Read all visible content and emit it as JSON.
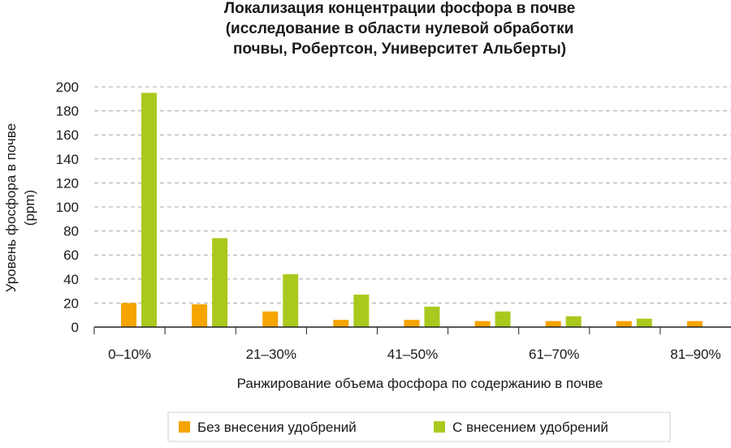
{
  "chart_data": {
    "type": "bar",
    "title_lines": [
      "Локализация концентрации фосфора в почве",
      "(исследование в области нулевой обработки",
      "почвы, Робертсон, Университет Альберты)"
    ],
    "xlabel": "Ранжирование объема фосфора по содержанию в почве",
    "ylabel_lines": [
      "Уровень фосфора в почве",
      "(ppm)"
    ],
    "ylim": [
      0,
      200
    ],
    "yticks": [
      0,
      20,
      40,
      60,
      80,
      100,
      120,
      140,
      160,
      180,
      200
    ],
    "grid": true,
    "legend_position": "bottom",
    "categories": [
      "0–10%",
      "",
      "21–30%",
      "",
      "41–50%",
      "",
      "61–70%",
      "",
      "81–90%"
    ],
    "series": [
      {
        "name": "Без внесения удобрений",
        "color": "#f5a400",
        "values": [
          20,
          19,
          13,
          6,
          6,
          5,
          5,
          5,
          5
        ]
      },
      {
        "name": "С внесением удобрений",
        "color": "#a9c91e",
        "values": [
          195,
          74,
          44,
          27,
          17,
          13,
          9,
          7,
          null
        ]
      }
    ]
  }
}
